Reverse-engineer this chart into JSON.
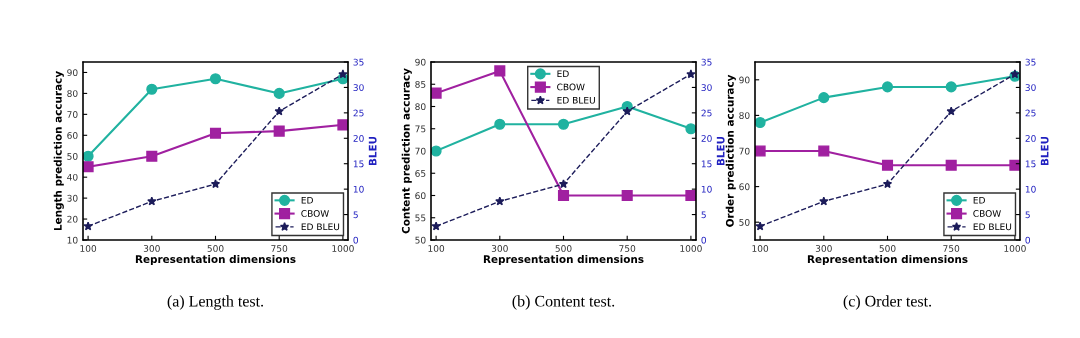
{
  "chart_data": [
    {
      "type": "line",
      "title": "(a) Length test.",
      "xlabel": "Representation dimensions",
      "ylabel": "Length prediction accuracy",
      "y2label": "BLEU",
      "categories": [
        "100",
        "300",
        "500",
        "750",
        "1000"
      ],
      "ylim": [
        10,
        95
      ],
      "yticks": [
        10,
        20,
        30,
        40,
        50,
        60,
        70,
        80,
        90
      ],
      "y2lim": [
        0,
        35
      ],
      "y2ticks": [
        0,
        5,
        10,
        15,
        20,
        25,
        30,
        35
      ],
      "legend": "bottom right",
      "grid": false,
      "series": [
        {
          "name": "ED",
          "color": "#20b2a0",
          "marker": "circle",
          "line_style": "solid",
          "values": [
            50,
            82,
            87,
            80,
            87
          ]
        },
        {
          "name": "CBOW",
          "color": "#a020a0",
          "marker": "square",
          "line_style": "solid",
          "values": [
            45,
            50,
            61,
            62,
            65
          ]
        },
        {
          "name": "ED BLEU",
          "color": "#1c1c5a",
          "marker": "star",
          "line_style": "dashed",
          "axis": "y2",
          "values": [
            2.7,
            7.6,
            11,
            25.3,
            32.6
          ]
        }
      ]
    },
    {
      "type": "line",
      "title": "(b) Content test.",
      "xlabel": "Representation dimensions",
      "ylabel": "Content prediction accuracy",
      "y2label": "BLEU",
      "categories": [
        "100",
        "300",
        "500",
        "750",
        "1000"
      ],
      "ylim": [
        50,
        90
      ],
      "yticks": [
        50,
        55,
        60,
        65,
        70,
        75,
        80,
        85,
        90
      ],
      "y2lim": [
        0,
        35
      ],
      "y2ticks": [
        0,
        5,
        10,
        15,
        20,
        25,
        30,
        35
      ],
      "legend": "top",
      "grid": false,
      "series": [
        {
          "name": "ED",
          "color": "#20b2a0",
          "marker": "circle",
          "line_style": "solid",
          "values": [
            70,
            76,
            76,
            80,
            75
          ]
        },
        {
          "name": "CBOW",
          "color": "#a020a0",
          "marker": "square",
          "line_style": "solid",
          "values": [
            83,
            88,
            60,
            60,
            60
          ]
        },
        {
          "name": "ED BLEU",
          "color": "#1c1c5a",
          "marker": "star",
          "line_style": "dashed",
          "axis": "y2",
          "values": [
            2.7,
            7.6,
            11,
            25.3,
            32.6
          ]
        }
      ]
    },
    {
      "type": "line",
      "title": "(c) Order test.",
      "xlabel": "Representation dimensions",
      "ylabel": "Order prediction accuracy",
      "y2label": "BLEU",
      "categories": [
        "100",
        "300",
        "500",
        "750",
        "1000"
      ],
      "ylim": [
        45,
        95
      ],
      "yticks": [
        50,
        60,
        70,
        80,
        90
      ],
      "y2lim": [
        0,
        35
      ],
      "y2ticks": [
        0,
        5,
        10,
        15,
        20,
        25,
        30,
        35
      ],
      "legend": "bottom right",
      "grid": false,
      "series": [
        {
          "name": "ED",
          "color": "#20b2a0",
          "marker": "circle",
          "line_style": "solid",
          "values": [
            78,
            85,
            88,
            88,
            91
          ]
        },
        {
          "name": "CBOW",
          "color": "#a020a0",
          "marker": "square",
          "line_style": "solid",
          "values": [
            70,
            70,
            66,
            66,
            66
          ]
        },
        {
          "name": "ED BLEU",
          "color": "#1c1c5a",
          "marker": "star",
          "line_style": "dashed",
          "axis": "y2",
          "values": [
            2.7,
            7.6,
            11,
            25.3,
            32.6
          ]
        }
      ]
    }
  ]
}
